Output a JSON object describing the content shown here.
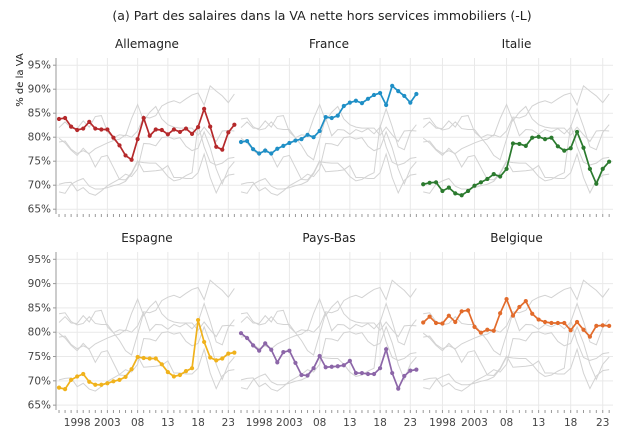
{
  "chart_data": {
    "type": "line",
    "title": "(a) Part des salaires dans la VA nette hors services immobiliers (-L)",
    "ylabel": "% de la VA",
    "xlabel": "",
    "ylim": [
      64,
      96.5
    ],
    "xlim": [
      1994.5,
      2024.6
    ],
    "yticks": [
      65,
      70,
      75,
      80,
      85,
      90,
      95
    ],
    "ytick_labels": [
      "65%",
      "70%",
      "75%",
      "80%",
      "85%",
      "90%",
      "95%"
    ],
    "xticks": [
      1998,
      2003,
      2008,
      2013,
      2018,
      2023
    ],
    "xtick_labels": [
      "1998",
      "2003",
      "08",
      "13",
      "18",
      "23"
    ],
    "years": [
      1995,
      1996,
      1997,
      1998,
      1999,
      2000,
      2001,
      2002,
      2003,
      2004,
      2005,
      2006,
      2007,
      2008,
      2009,
      2010,
      2011,
      2012,
      2013,
      2014,
      2015,
      2016,
      2017,
      2018,
      2019,
      2020,
      2021,
      2022,
      2023,
      2024
    ],
    "series": [
      {
        "name": "Allemagne",
        "color": "#b5292b",
        "values": [
          83.8,
          84.0,
          82.2,
          81.5,
          81.8,
          83.2,
          81.8,
          81.6,
          81.6,
          79.9,
          78.3,
          76.2,
          75.3,
          79.6,
          84.0,
          80.3,
          81.6,
          81.5,
          80.6,
          81.6,
          81.1,
          81.8,
          80.7,
          82.1,
          85.9,
          82.2,
          78.0,
          77.4,
          81.0,
          82.6
        ]
      },
      {
        "name": "France",
        "color": "#1f8fc6",
        "values": [
          79.0,
          79.2,
          77.5,
          76.6,
          77.2,
          76.6,
          77.6,
          78.2,
          78.8,
          79.3,
          79.6,
          80.5,
          80.0,
          81.3,
          84.2,
          84.0,
          84.5,
          86.5,
          87.2,
          87.6,
          87.1,
          88.0,
          88.8,
          89.2,
          86.7,
          90.7,
          89.6,
          88.6,
          87.2,
          89.0
        ]
      },
      {
        "name": "Italie",
        "color": "#2b7a2e",
        "values": [
          70.2,
          70.5,
          70.6,
          68.8,
          69.5,
          68.3,
          67.9,
          68.8,
          69.9,
          70.6,
          71.3,
          72.3,
          71.8,
          73.4,
          78.7,
          78.6,
          78.2,
          79.9,
          80.1,
          79.6,
          79.9,
          78.1,
          77.2,
          77.7,
          81.1,
          77.8,
          73.4,
          70.3,
          73.4,
          74.9
        ]
      },
      {
        "name": "Espagne",
        "color": "#f0b21c",
        "values": [
          68.6,
          68.3,
          70.2,
          70.9,
          71.4,
          69.8,
          69.2,
          69.2,
          69.5,
          69.9,
          70.2,
          70.8,
          72.4,
          74.9,
          74.7,
          74.6,
          74.6,
          73.4,
          71.8,
          70.9,
          71.2,
          72.0,
          72.6,
          82.5,
          78.0,
          74.8,
          74.2,
          74.6,
          75.6,
          75.8
        ]
      },
      {
        "name": "Pays-Bas",
        "color": "#8c66a8",
        "values": [
          79.8,
          78.8,
          77.3,
          76.2,
          77.7,
          76.4,
          73.8,
          75.9,
          76.2,
          73.7,
          71.2,
          71.1,
          72.6,
          75.1,
          72.8,
          72.9,
          73.0,
          73.2,
          74.1,
          71.6,
          71.6,
          71.4,
          71.4,
          72.6,
          76.5,
          71.6,
          68.4,
          71.0,
          72.1,
          72.3
        ]
      },
      {
        "name": "Belgique",
        "color": "#e26b2b",
        "values": [
          82.0,
          83.2,
          81.9,
          81.8,
          83.4,
          82.1,
          84.3,
          84.5,
          81.1,
          79.9,
          80.5,
          80.3,
          83.9,
          86.8,
          83.4,
          85.2,
          86.4,
          83.8,
          82.6,
          82.1,
          81.9,
          81.9,
          81.9,
          80.4,
          82.1,
          80.5,
          79.1,
          81.3,
          81.4,
          81.3
        ]
      }
    ]
  }
}
